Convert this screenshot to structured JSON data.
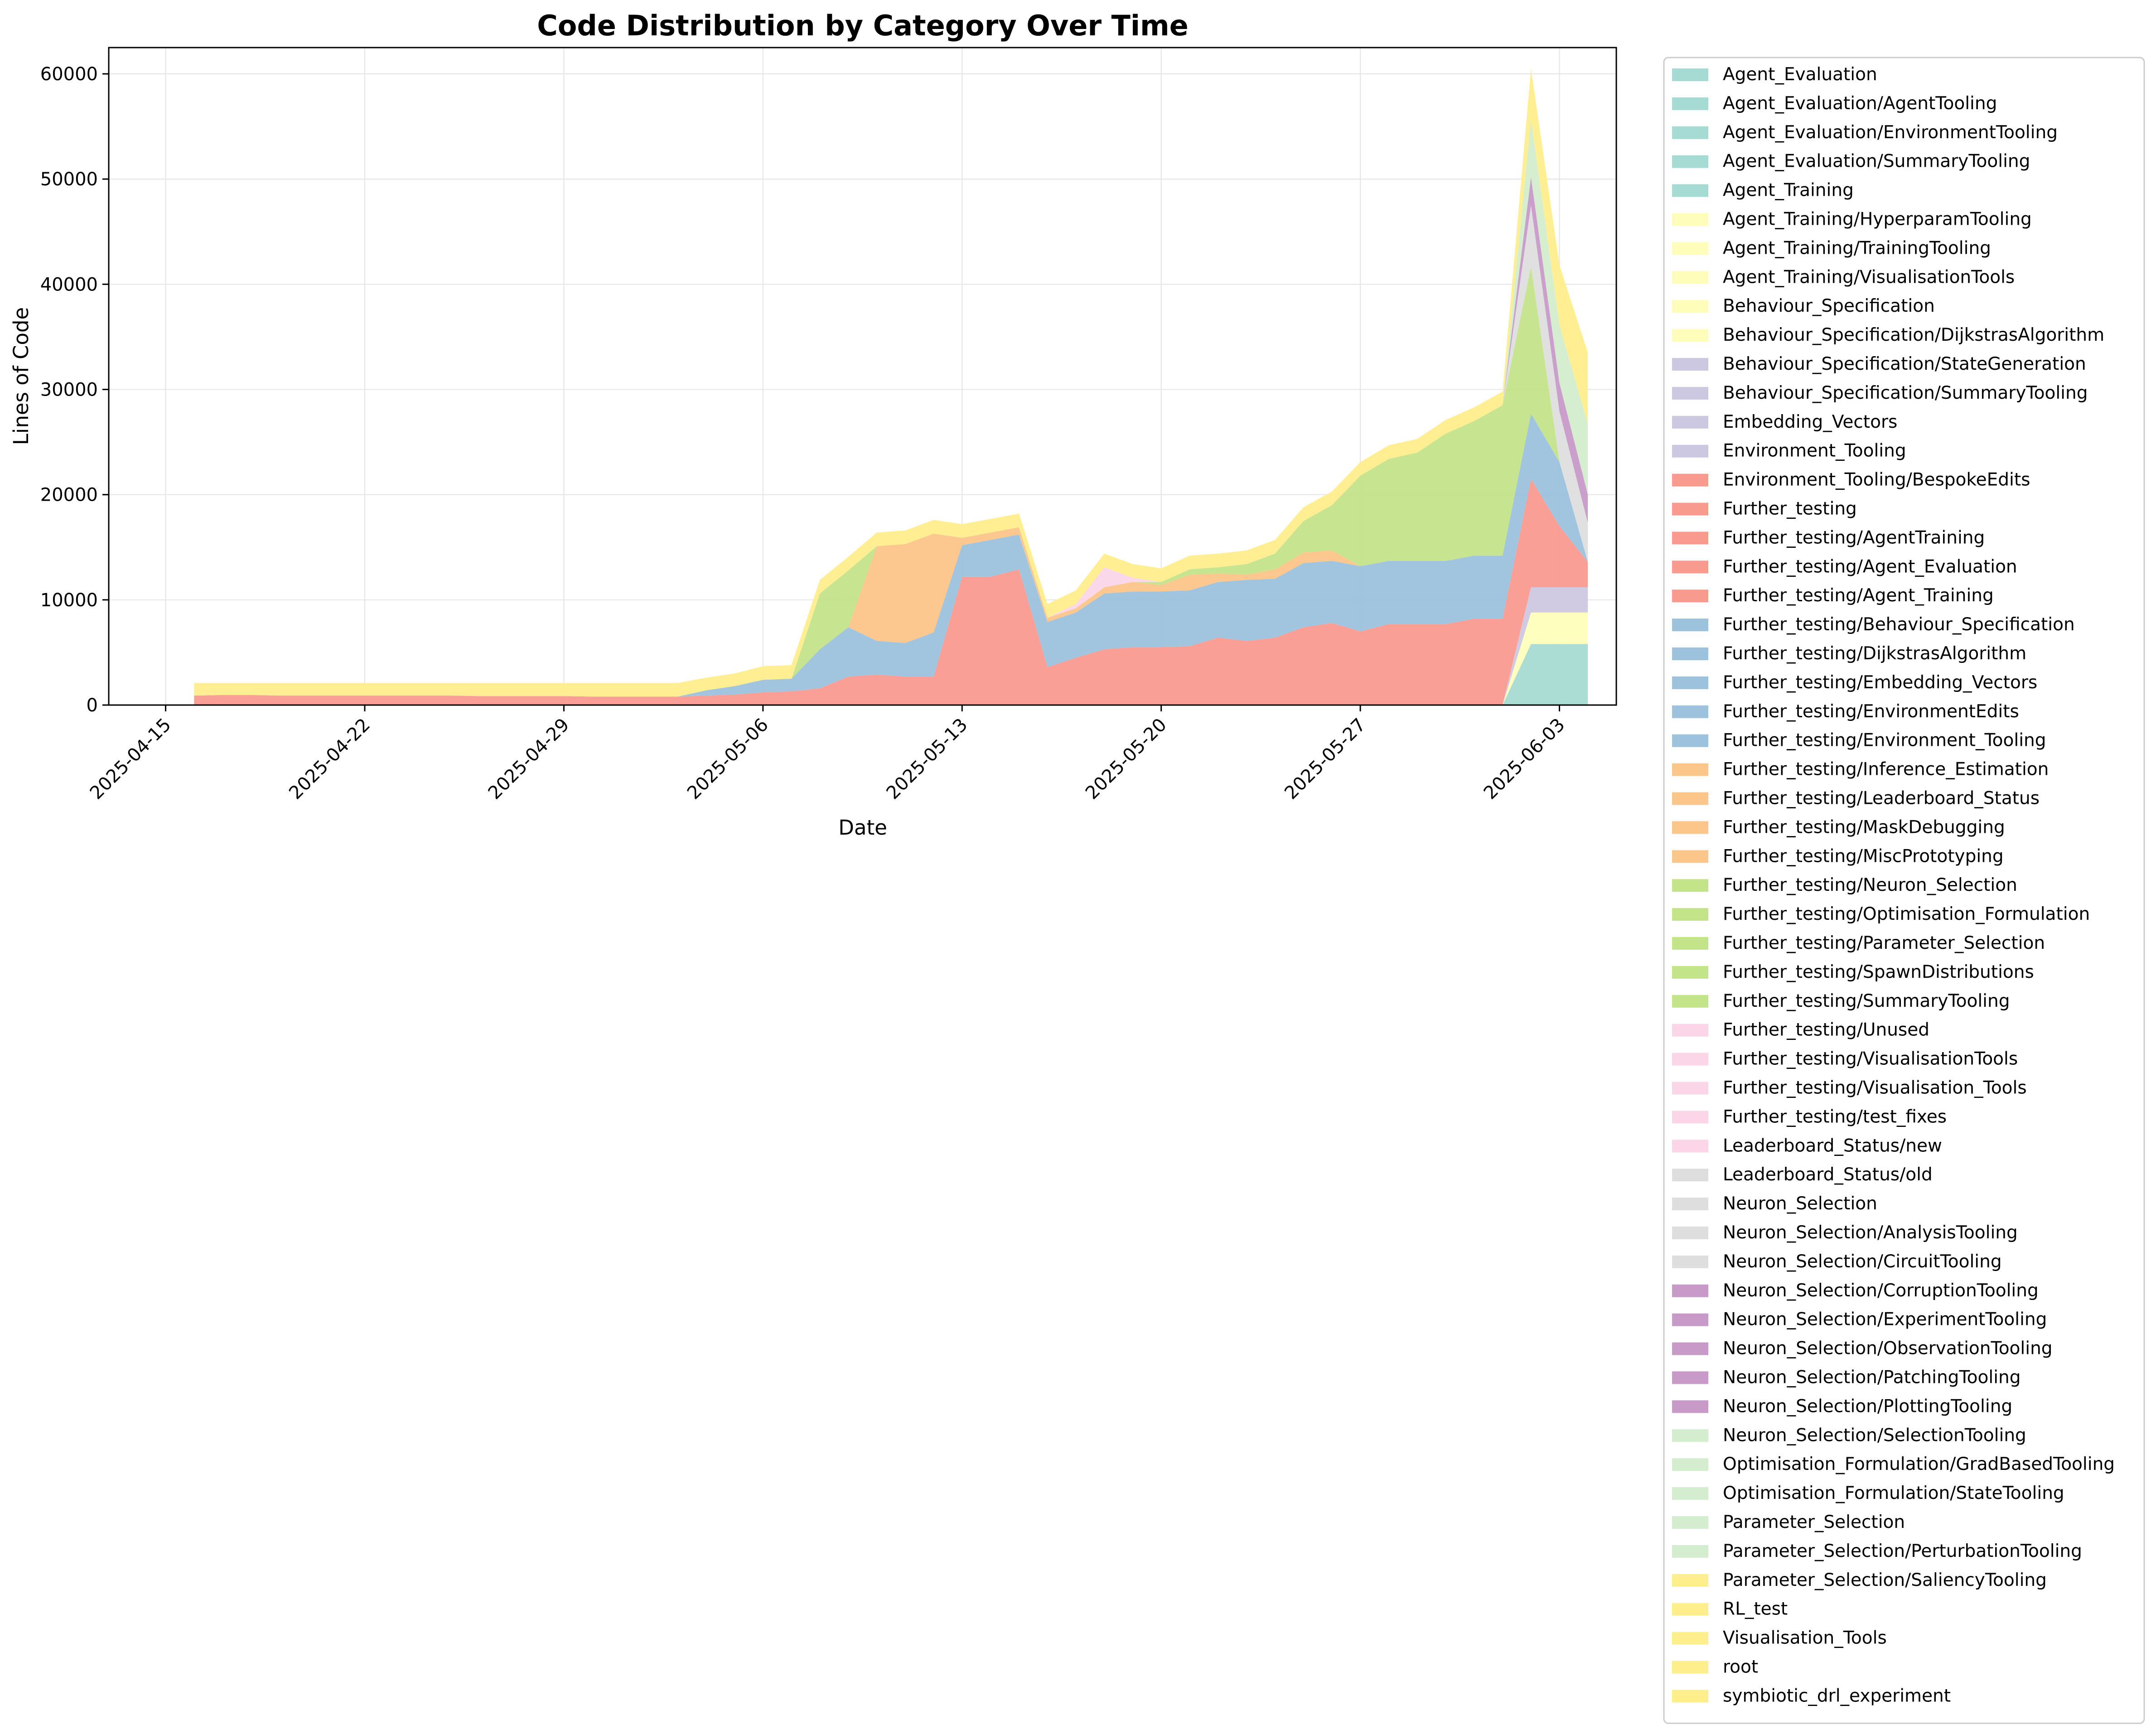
{
  "chart_data": {
    "type": "area",
    "stacked": true,
    "title": "Code Distribution by Category Over Time",
    "xlabel": "Date",
    "ylabel": "Lines of Code",
    "xlim": [
      "2025-04-13",
      "2025-06-05"
    ],
    "ylim": [
      0,
      62500
    ],
    "grid": true,
    "legend_position": "outside-right",
    "x_ticks": [
      "2025-04-15",
      "2025-04-22",
      "2025-04-29",
      "2025-05-06",
      "2025-05-13",
      "2025-05-20",
      "2025-05-27",
      "2025-06-03"
    ],
    "y_ticks": [
      0,
      10000,
      20000,
      30000,
      40000,
      50000,
      60000
    ],
    "dates": [
      "2025-04-16",
      "2025-04-17",
      "2025-04-18",
      "2025-04-19",
      "2025-04-20",
      "2025-04-21",
      "2025-04-22",
      "2025-04-23",
      "2025-04-24",
      "2025-04-25",
      "2025-04-26",
      "2025-04-27",
      "2025-04-28",
      "2025-04-29",
      "2025-04-30",
      "2025-05-01",
      "2025-05-02",
      "2025-05-03",
      "2025-05-04",
      "2025-05-05",
      "2025-05-06",
      "2025-05-07",
      "2025-05-08",
      "2025-05-09",
      "2025-05-10",
      "2025-05-11",
      "2025-05-12",
      "2025-05-13",
      "2025-05-14",
      "2025-05-15",
      "2025-05-16",
      "2025-05-17",
      "2025-05-18",
      "2025-05-19",
      "2025-05-20",
      "2025-05-21",
      "2025-05-22",
      "2025-05-23",
      "2025-05-24",
      "2025-05-25",
      "2025-05-26",
      "2025-05-27",
      "2025-05-28",
      "2025-05-29",
      "2025-05-30",
      "2025-05-31",
      "2025-06-01",
      "2025-06-02",
      "2025-06-03",
      "2025-06-04"
    ],
    "legend": [
      {
        "label": "Agent_Evaluation",
        "color": "#a6dbd3"
      },
      {
        "label": "Agent_Evaluation/AgentTooling",
        "color": "#a6dbd3"
      },
      {
        "label": "Agent_Evaluation/EnvironmentTooling",
        "color": "#a6dbd3"
      },
      {
        "label": "Agent_Evaluation/SummaryTooling",
        "color": "#a6dbd3"
      },
      {
        "label": "Agent_Training",
        "color": "#a6dbd3"
      },
      {
        "label": "Agent_Training/HyperparamTooling",
        "color": "#fefeba"
      },
      {
        "label": "Agent_Training/TrainingTooling",
        "color": "#fefeba"
      },
      {
        "label": "Agent_Training/VisualisationTools",
        "color": "#fefeba"
      },
      {
        "label": "Behaviour_Specification",
        "color": "#fefeba"
      },
      {
        "label": "Behaviour_Specification/DijkstrasAlgorithm",
        "color": "#fefeba"
      },
      {
        "label": "Behaviour_Specification/StateGeneration",
        "color": "#cdc8e1"
      },
      {
        "label": "Behaviour_Specification/SummaryTooling",
        "color": "#cdc8e1"
      },
      {
        "label": "Embedding_Vectors",
        "color": "#cdc8e1"
      },
      {
        "label": "Environment_Tooling",
        "color": "#cdc8e1"
      },
      {
        "label": "Environment_Tooling/BespokeEdits",
        "color": "#f99a8f"
      },
      {
        "label": "Further_testing",
        "color": "#f99a8f"
      },
      {
        "label": "Further_testing/AgentTraining",
        "color": "#f99a8f"
      },
      {
        "label": "Further_testing/Agent_Evaluation",
        "color": "#f99a8f"
      },
      {
        "label": "Further_testing/Agent_Training",
        "color": "#f99a8f"
      },
      {
        "label": "Further_testing/Behaviour_Specification",
        "color": "#9cc2dd"
      },
      {
        "label": "Further_testing/DijkstrasAlgorithm",
        "color": "#9cc2dd"
      },
      {
        "label": "Further_testing/Embedding_Vectors",
        "color": "#9cc2dd"
      },
      {
        "label": "Further_testing/EnvironmentEdits",
        "color": "#9cc2dd"
      },
      {
        "label": "Further_testing/Environment_Tooling",
        "color": "#9cc2dd"
      },
      {
        "label": "Further_testing/Inference_Estimation",
        "color": "#fcc589"
      },
      {
        "label": "Further_testing/Leaderboard_Status",
        "color": "#fcc589"
      },
      {
        "label": "Further_testing/MaskDebugging",
        "color": "#fcc589"
      },
      {
        "label": "Further_testing/MiscPrototyping",
        "color": "#fcc589"
      },
      {
        "label": "Further_testing/Neuron_Selection",
        "color": "#c4e48a"
      },
      {
        "label": "Further_testing/Optimisation_Formulation",
        "color": "#c4e48a"
      },
      {
        "label": "Further_testing/Parameter_Selection",
        "color": "#c4e48a"
      },
      {
        "label": "Further_testing/SpawnDistributions",
        "color": "#c4e48a"
      },
      {
        "label": "Further_testing/SummaryTooling",
        "color": "#c4e48a"
      },
      {
        "label": "Further_testing/Unused",
        "color": "#fad6e8"
      },
      {
        "label": "Further_testing/VisualisationTools",
        "color": "#fad6e8"
      },
      {
        "label": "Further_testing/Visualisation_Tools",
        "color": "#fad6e8"
      },
      {
        "label": "Further_testing/test_fixes",
        "color": "#fad6e8"
      },
      {
        "label": "Leaderboard_Status/new",
        "color": "#fad6e8"
      },
      {
        "label": "Leaderboard_Status/old",
        "color": "#dedede"
      },
      {
        "label": "Neuron_Selection",
        "color": "#dedede"
      },
      {
        "label": "Neuron_Selection/AnalysisTooling",
        "color": "#dedede"
      },
      {
        "label": "Neuron_Selection/CircuitTooling",
        "color": "#dedede"
      },
      {
        "label": "Neuron_Selection/CorruptionTooling",
        "color": "#c89ac8"
      },
      {
        "label": "Neuron_Selection/ExperimentTooling",
        "color": "#c89ac8"
      },
      {
        "label": "Neuron_Selection/ObservationTooling",
        "color": "#c89ac8"
      },
      {
        "label": "Neuron_Selection/PatchingTooling",
        "color": "#c89ac8"
      },
      {
        "label": "Neuron_Selection/PlottingTooling",
        "color": "#c89ac8"
      },
      {
        "label": "Neuron_Selection/SelectionTooling",
        "color": "#d3edce"
      },
      {
        "label": "Optimisation_Formulation/GradBasedTooling",
        "color": "#d3edce"
      },
      {
        "label": "Optimisation_Formulation/StateTooling",
        "color": "#d3edce"
      },
      {
        "label": "Parameter_Selection",
        "color": "#d3edce"
      },
      {
        "label": "Parameter_Selection/PerturbationTooling",
        "color": "#d3edce"
      },
      {
        "label": "Parameter_Selection/SaliencyTooling",
        "color": "#ffee8c"
      },
      {
        "label": "RL_test",
        "color": "#ffee8c"
      },
      {
        "label": "Visualisation_Tools",
        "color": "#ffee8c"
      },
      {
        "label": "root",
        "color": "#ffee8c"
      },
      {
        "label": "symbiotic_drl_experiment",
        "color": "#ffee8c"
      }
    ],
    "series": [
      {
        "color": "#a6dbd3",
        "values": [
          0,
          0,
          0,
          0,
          0,
          0,
          0,
          0,
          0,
          0,
          0,
          0,
          0,
          0,
          0,
          0,
          0,
          0,
          0,
          0,
          0,
          0,
          0,
          0,
          0,
          0,
          0,
          0,
          0,
          0,
          0,
          0,
          0,
          0,
          0,
          0,
          0,
          0,
          0,
          0,
          0,
          0,
          0,
          0,
          0,
          0,
          0,
          5800,
          5800,
          5800
        ]
      },
      {
        "color": "#fefeba",
        "values": [
          0,
          0,
          0,
          0,
          0,
          0,
          0,
          0,
          0,
          0,
          0,
          0,
          0,
          0,
          0,
          0,
          0,
          0,
          0,
          0,
          0,
          0,
          0,
          0,
          0,
          0,
          0,
          0,
          0,
          0,
          0,
          0,
          0,
          0,
          0,
          0,
          0,
          0,
          0,
          0,
          0,
          0,
          0,
          0,
          0,
          0,
          0,
          3000,
          3000,
          3000
        ]
      },
      {
        "color": "#cdc8e1",
        "values": [
          0,
          0,
          0,
          0,
          0,
          0,
          0,
          0,
          0,
          0,
          0,
          0,
          0,
          0,
          0,
          0,
          0,
          0,
          0,
          0,
          0,
          0,
          0,
          0,
          0,
          0,
          0,
          0,
          0,
          0,
          0,
          0,
          0,
          0,
          0,
          0,
          0,
          0,
          0,
          0,
          0,
          0,
          0,
          0,
          0,
          0,
          0,
          2400,
          2400,
          2400
        ]
      },
      {
        "color": "#f99a8f",
        "values": [
          900,
          950,
          950,
          900,
          900,
          900,
          900,
          900,
          900,
          900,
          850,
          850,
          850,
          850,
          800,
          800,
          800,
          800,
          900,
          1000,
          1200,
          1300,
          1600,
          2700,
          2900,
          2700,
          2700,
          12200,
          12200,
          12900,
          3600,
          4500,
          5300,
          5500,
          5500,
          5600,
          6400,
          6100,
          6400,
          7400,
          7800,
          7000,
          7700,
          7700,
          7700,
          8200,
          8200,
          10300,
          5800,
          2400
        ]
      },
      {
        "color": "#9cc2dd",
        "values": [
          0,
          0,
          0,
          0,
          0,
          0,
          0,
          0,
          0,
          0,
          0,
          0,
          0,
          0,
          0,
          0,
          0,
          0,
          500,
          800,
          1200,
          1200,
          3700,
          4700,
          3200,
          3200,
          4200,
          3000,
          3500,
          3300,
          4300,
          4300,
          5300,
          5300,
          5300,
          5300,
          5300,
          5800,
          5600,
          6100,
          5900,
          6200,
          6000,
          6000,
          6000,
          6000,
          6000,
          6200,
          6100,
          0
        ]
      },
      {
        "color": "#fcc589",
        "values": [
          0,
          0,
          0,
          0,
          0,
          0,
          0,
          0,
          0,
          0,
          0,
          0,
          0,
          0,
          0,
          0,
          0,
          0,
          0,
          0,
          0,
          0,
          0,
          0,
          9000,
          9400,
          9400,
          700,
          700,
          700,
          400,
          400,
          600,
          900,
          600,
          1500,
          800,
          500,
          900,
          1000,
          1000,
          0,
          0,
          0,
          0,
          0,
          0,
          0,
          0,
          0
        ]
      },
      {
        "color": "#c4e48a",
        "values": [
          0,
          0,
          0,
          0,
          0,
          0,
          0,
          0,
          0,
          0,
          0,
          0,
          0,
          0,
          0,
          0,
          0,
          0,
          0,
          0,
          0,
          0,
          5300,
          5400,
          0,
          0,
          0,
          0,
          0,
          0,
          0,
          0,
          0,
          0,
          300,
          500,
          600,
          1000,
          1500,
          3000,
          4300,
          8600,
          9700,
          10300,
          12100,
          12800,
          14300,
          14000,
          0,
          0
        ]
      },
      {
        "color": "#fad6e8",
        "values": [
          0,
          0,
          0,
          0,
          0,
          0,
          0,
          0,
          0,
          0,
          0,
          0,
          0,
          0,
          0,
          0,
          0,
          0,
          0,
          0,
          0,
          0,
          0,
          0,
          0,
          0,
          0,
          0,
          0,
          0,
          0,
          400,
          1900,
          400,
          0,
          0,
          0,
          0,
          0,
          0,
          0,
          0,
          0,
          0,
          0,
          0,
          0,
          0,
          0,
          0
        ]
      },
      {
        "color": "#dedede",
        "values": [
          0,
          0,
          0,
          0,
          0,
          0,
          0,
          0,
          0,
          0,
          0,
          0,
          0,
          0,
          0,
          0,
          0,
          0,
          0,
          0,
          0,
          0,
          0,
          0,
          0,
          0,
          0,
          0,
          0,
          0,
          0,
          0,
          0,
          0,
          0,
          0,
          0,
          0,
          0,
          0,
          0,
          0,
          0,
          0,
          0,
          0,
          0,
          5800,
          4800,
          3700
        ]
      },
      {
        "color": "#c89ac8",
        "values": [
          0,
          0,
          0,
          0,
          0,
          0,
          0,
          0,
          0,
          0,
          0,
          0,
          0,
          0,
          0,
          0,
          0,
          0,
          0,
          0,
          0,
          0,
          0,
          0,
          0,
          0,
          0,
          0,
          0,
          0,
          0,
          0,
          0,
          0,
          0,
          0,
          0,
          0,
          0,
          0,
          0,
          0,
          0,
          0,
          0,
          0,
          0,
          2700,
          2700,
          2700
        ]
      },
      {
        "color": "#d3edce",
        "values": [
          0,
          0,
          0,
          0,
          0,
          0,
          0,
          0,
          0,
          0,
          0,
          0,
          0,
          0,
          0,
          0,
          0,
          0,
          0,
          0,
          0,
          0,
          0,
          0,
          0,
          0,
          0,
          0,
          0,
          0,
          0,
          0,
          0,
          0,
          0,
          0,
          0,
          0,
          0,
          0,
          0,
          0,
          0,
          0,
          0,
          0,
          0,
          5500,
          5500,
          6700
        ]
      },
      {
        "color": "#ffee8c",
        "values": [
          1200,
          1150,
          1150,
          1200,
          1200,
          1200,
          1200,
          1200,
          1200,
          1200,
          1250,
          1250,
          1250,
          1250,
          1300,
          1300,
          1300,
          1300,
          1200,
          1200,
          1300,
          1300,
          1300,
          1300,
          1300,
          1300,
          1300,
          1300,
          1300,
          1300,
          1300,
          1300,
          1300,
          1300,
          1300,
          1300,
          1300,
          1300,
          1300,
          1300,
          1300,
          1300,
          1300,
          1300,
          1300,
          1300,
          1300,
          4800,
          5700,
          6800
        ]
      }
    ]
  }
}
